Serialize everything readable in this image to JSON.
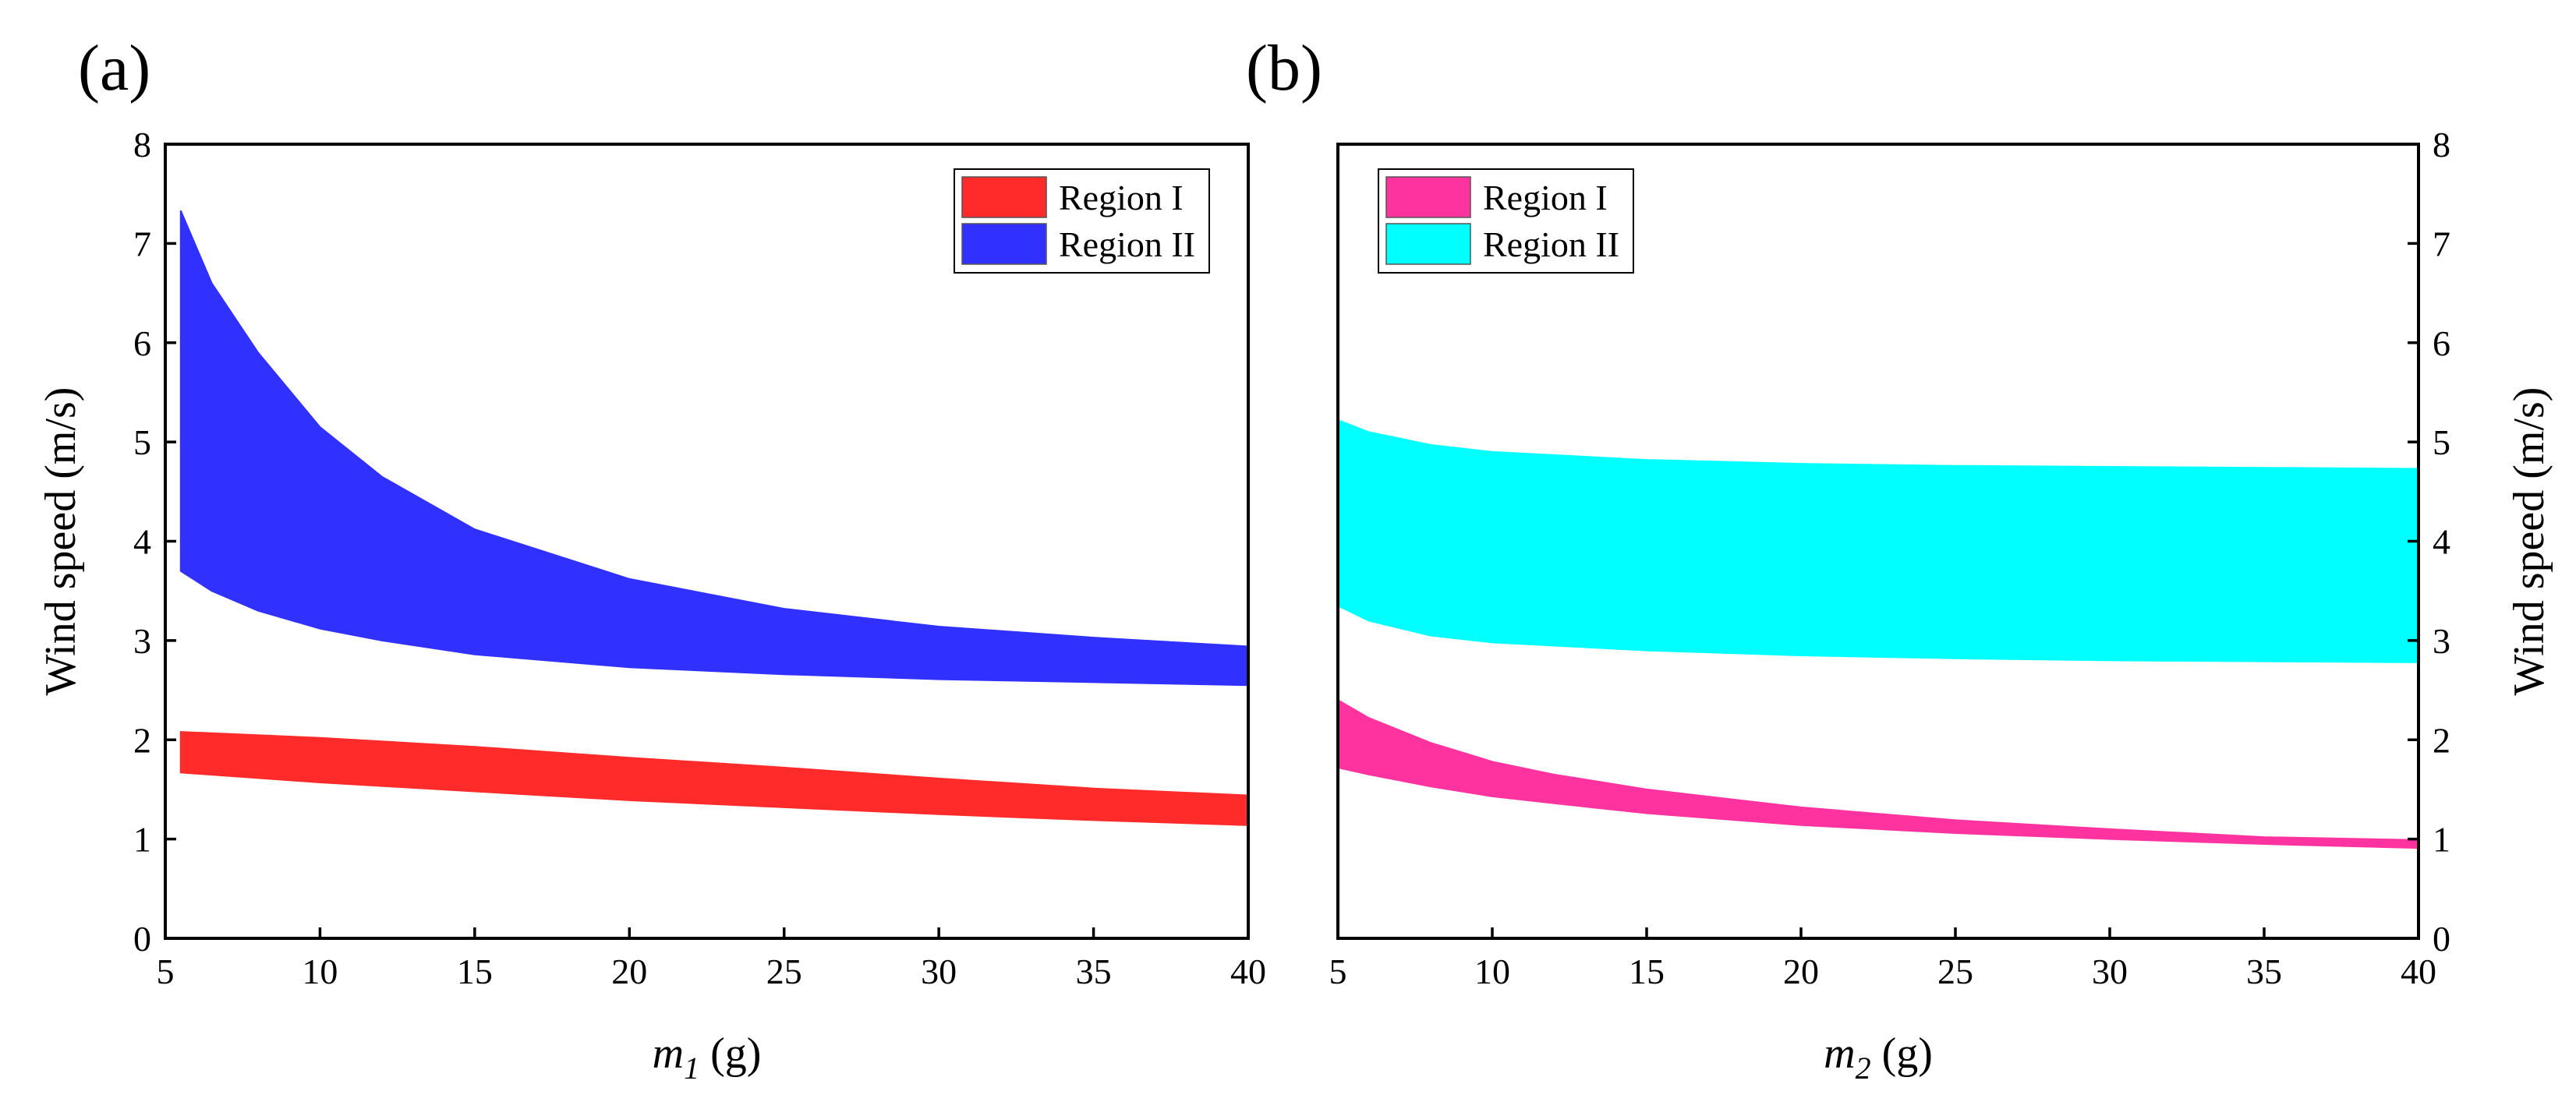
{
  "chart_data": [
    {
      "type": "area",
      "panel_label": "(a)",
      "xlabel_var": "m",
      "xlabel_sub": "1",
      "xlabel_unit": " (g)",
      "ylabel": "Wind speed (m/s)",
      "xlim": [
        5,
        40
      ],
      "ylim": [
        0,
        8
      ],
      "xticks": [
        "5",
        "10",
        "15",
        "20",
        "25",
        "30",
        "35",
        "40"
      ],
      "yticks": [
        "0",
        "1",
        "2",
        "3",
        "4",
        "5",
        "6",
        "7",
        "8"
      ],
      "legend_position": "top-right",
      "series": [
        {
          "name": "Region I",
          "color": "#ff2a2a",
          "x": [
            5.5,
            10,
            15,
            20,
            25,
            30,
            35,
            40
          ],
          "lower": [
            1.67,
            1.57,
            1.48,
            1.39,
            1.32,
            1.25,
            1.19,
            1.14
          ],
          "upper": [
            2.08,
            2.02,
            1.93,
            1.82,
            1.72,
            1.61,
            1.51,
            1.44
          ]
        },
        {
          "name": "Region II",
          "color": "#3030ff",
          "x": [
            5.5,
            6.5,
            8,
            10,
            12,
            15,
            20,
            25,
            30,
            35,
            40
          ],
          "lower": [
            3.7,
            3.5,
            3.3,
            3.12,
            3.0,
            2.86,
            2.73,
            2.66,
            2.61,
            2.58,
            2.55
          ],
          "upper": [
            7.33,
            6.6,
            5.9,
            5.15,
            4.65,
            4.12,
            3.62,
            3.32,
            3.14,
            3.03,
            2.94
          ]
        }
      ]
    },
    {
      "type": "area",
      "panel_label": "(b)",
      "xlabel_var": "m",
      "xlabel_sub": "2",
      "xlabel_unit": " (g)",
      "ylabel": "Wind speed (m/s)",
      "xlim": [
        5,
        40
      ],
      "ylim": [
        0,
        8
      ],
      "xticks": [
        "5",
        "10",
        "15",
        "20",
        "25",
        "30",
        "35",
        "40"
      ],
      "yticks": [
        "0",
        "1",
        "2",
        "3",
        "4",
        "5",
        "6",
        "7",
        "8"
      ],
      "legend_position": "top-left",
      "series": [
        {
          "name": "Region I",
          "color": "#ff33a0",
          "x": [
            5,
            6,
            8,
            10,
            12,
            15,
            20,
            25,
            30,
            35,
            40
          ],
          "lower": [
            1.72,
            1.65,
            1.53,
            1.43,
            1.36,
            1.26,
            1.14,
            1.06,
            1.0,
            0.95,
            0.91
          ],
          "upper": [
            2.4,
            2.22,
            1.97,
            1.78,
            1.65,
            1.5,
            1.32,
            1.19,
            1.1,
            1.02,
            0.99
          ]
        },
        {
          "name": "Region II",
          "color": "#00ffff",
          "x": [
            5,
            6,
            8,
            10,
            15,
            20,
            25,
            30,
            35,
            40
          ],
          "lower": [
            3.35,
            3.2,
            3.05,
            2.98,
            2.9,
            2.85,
            2.82,
            2.8,
            2.79,
            2.78
          ],
          "upper": [
            5.22,
            5.1,
            4.97,
            4.9,
            4.82,
            4.78,
            4.76,
            4.75,
            4.74,
            4.73
          ]
        }
      ]
    }
  ]
}
